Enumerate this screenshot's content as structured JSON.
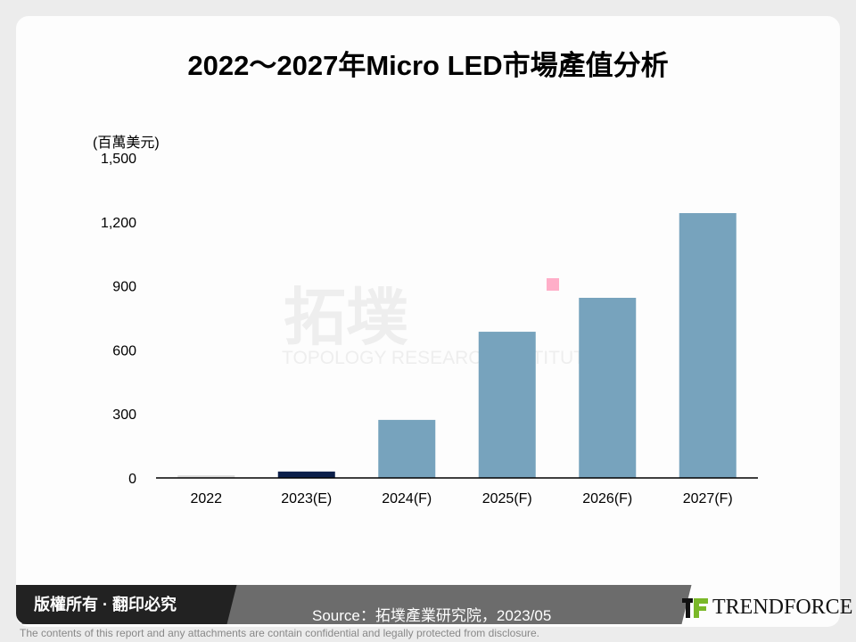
{
  "chart_data": {
    "type": "bar",
    "title": "2022～2027年Micro LED市場產值分析",
    "ylabel": "(百萬美元)",
    "xlabel": "",
    "categories": [
      "2022",
      "2023(E)",
      "2024(F)",
      "2025(F)",
      "2026(F)",
      "2027(F)"
    ],
    "values": [
      12,
      30,
      272,
      685,
      844,
      1241
    ],
    "colors": [
      "#dcdcdc",
      "#0b1f4a",
      "#77a3bd",
      "#77a3bd",
      "#77a3bd",
      "#77a3bd"
    ],
    "ylim": [
      0,
      1500
    ],
    "yticks": [
      0,
      300,
      600,
      900,
      1200,
      1500
    ],
    "ytick_labels": [
      "0",
      "300",
      "600",
      "900",
      "1,200",
      "1,500"
    ],
    "grid": false,
    "legend": "none"
  },
  "watermark": {
    "cn": "拓墣",
    "en": "TOPOLOGY RESEARCH INSTITUTE"
  },
  "footer": {
    "copyright": "版權所有 · 翻印必究",
    "source": "Source：拓墣產業研究院，2023/05",
    "logo": "TRENDFORCE",
    "disclaimer": "The contents of this report and any attachments are contain confidential and legally protected from disclosure."
  }
}
